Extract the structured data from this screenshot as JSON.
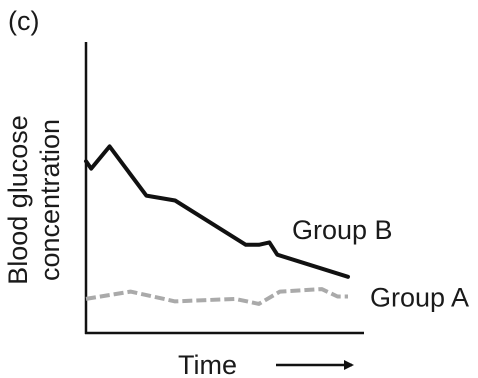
{
  "panel_label": "(c)",
  "chart_data": {
    "type": "line",
    "title": "",
    "xlabel": "Time",
    "ylabel_lines": [
      "Blood glucose",
      "concentration"
    ],
    "xlim": [
      0,
      100
    ],
    "ylim": [
      0,
      100
    ],
    "x_ticks": [],
    "y_ticks": [],
    "grid": false,
    "legend": "inline labels at line ends",
    "series": [
      {
        "name": "Group B",
        "color": "#111111",
        "style": "solid",
        "points": [
          [
            0,
            67
          ],
          [
            2,
            64
          ],
          [
            9,
            73
          ],
          [
            23,
            53
          ],
          [
            34,
            51
          ],
          [
            61,
            33
          ],
          [
            66,
            33
          ],
          [
            70,
            34
          ],
          [
            73,
            29
          ],
          [
            100,
            20
          ]
        ]
      },
      {
        "name": "Group A",
        "color": "#aaaaaa",
        "style": "dashed",
        "points": [
          [
            0,
            11
          ],
          [
            17,
            14
          ],
          [
            34,
            10
          ],
          [
            57,
            11
          ],
          [
            66,
            9
          ],
          [
            74,
            14
          ],
          [
            90,
            15
          ],
          [
            96,
            12
          ],
          [
            100,
            12
          ]
        ]
      }
    ]
  }
}
